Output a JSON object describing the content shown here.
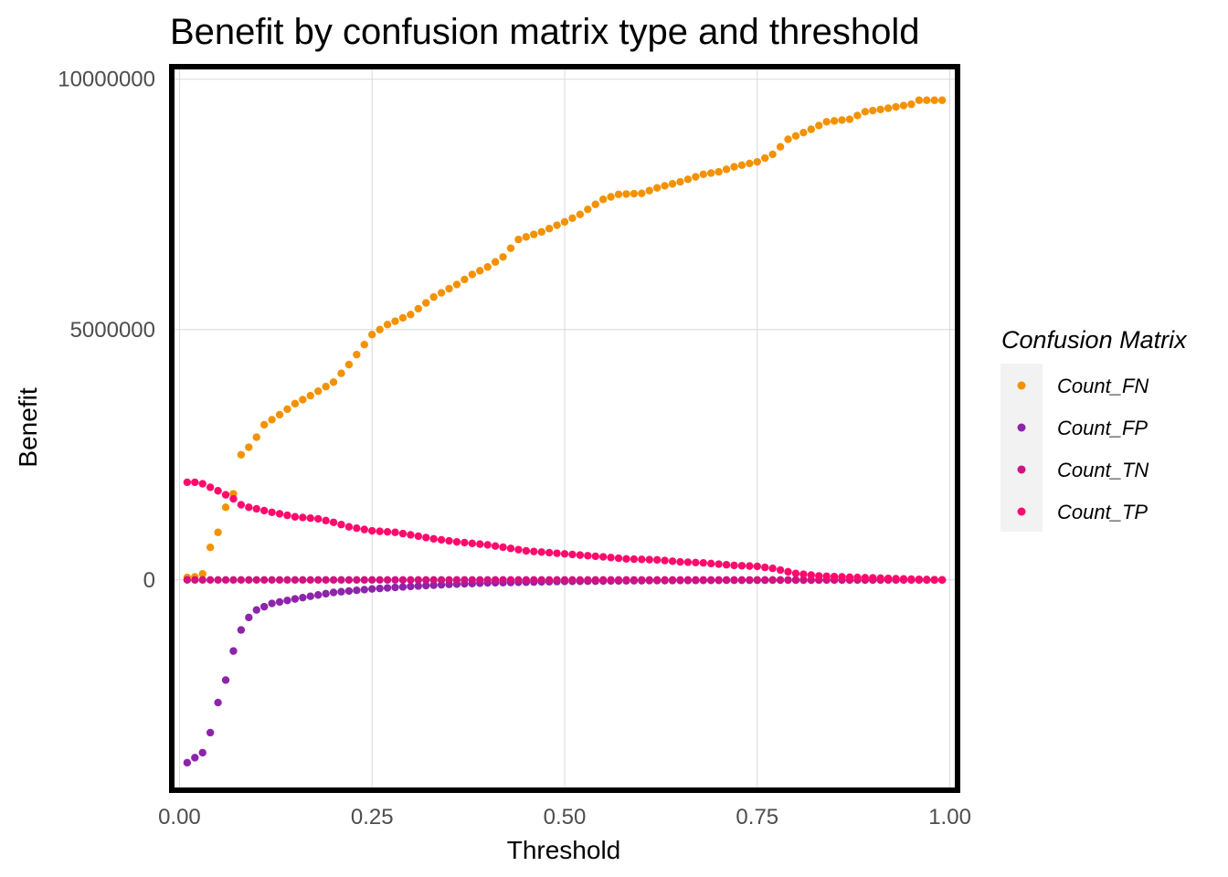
{
  "chart_data": {
    "type": "scatter",
    "title": "Benefit by confusion matrix type and threshold",
    "xlabel": "Threshold",
    "ylabel": "Benefit",
    "xlim": [
      -0.01,
      1.01
    ],
    "ylim": [
      -4200000,
      10250000
    ],
    "x_ticks": [
      0.0,
      0.25,
      0.5,
      0.75,
      1.0
    ],
    "x_tick_labels": [
      "0.00",
      "0.25",
      "0.50",
      "0.75",
      "1.00"
    ],
    "y_ticks": [
      0,
      5000000,
      10000000
    ],
    "y_tick_labels": [
      "0",
      "5000000",
      "10000000"
    ],
    "grid": true,
    "legend": {
      "title": "Confusion Matrix",
      "position": "right"
    },
    "series": [
      {
        "name": "Count_FN",
        "color": "#F39200",
        "anchors": [
          [
            0.01,
            50000
          ],
          [
            0.02,
            60000
          ],
          [
            0.03,
            120000
          ],
          [
            0.04,
            650000
          ],
          [
            0.05,
            950000
          ],
          [
            0.06,
            1450000
          ],
          [
            0.07,
            1720000
          ],
          [
            0.08,
            2500000
          ],
          [
            0.09,
            2650000
          ],
          [
            0.1,
            2850000
          ],
          [
            0.11,
            3100000
          ],
          [
            0.13,
            3300000
          ],
          [
            0.15,
            3520000
          ],
          [
            0.17,
            3680000
          ],
          [
            0.2,
            3950000
          ],
          [
            0.22,
            4300000
          ],
          [
            0.25,
            4900000
          ],
          [
            0.27,
            5100000
          ],
          [
            0.3,
            5300000
          ],
          [
            0.33,
            5650000
          ],
          [
            0.36,
            5900000
          ],
          [
            0.38,
            6100000
          ],
          [
            0.4,
            6250000
          ],
          [
            0.42,
            6450000
          ],
          [
            0.44,
            6800000
          ],
          [
            0.47,
            6950000
          ],
          [
            0.5,
            7150000
          ],
          [
            0.52,
            7300000
          ],
          [
            0.55,
            7600000
          ],
          [
            0.57,
            7700000
          ],
          [
            0.6,
            7720000
          ],
          [
            0.62,
            7830000
          ],
          [
            0.65,
            7950000
          ],
          [
            0.68,
            8100000
          ],
          [
            0.7,
            8150000
          ],
          [
            0.72,
            8250000
          ],
          [
            0.75,
            8350000
          ],
          [
            0.77,
            8500000
          ],
          [
            0.79,
            8800000
          ],
          [
            0.82,
            9000000
          ],
          [
            0.84,
            9150000
          ],
          [
            0.87,
            9200000
          ],
          [
            0.89,
            9350000
          ],
          [
            0.92,
            9420000
          ],
          [
            0.95,
            9500000
          ],
          [
            0.96,
            9580000
          ],
          [
            0.99,
            9580000
          ]
        ]
      },
      {
        "name": "Count_FP",
        "color": "#8E24AA",
        "anchors": [
          [
            0.01,
            -3650000
          ],
          [
            0.02,
            -3550000
          ],
          [
            0.03,
            -3450000
          ],
          [
            0.04,
            -3050000
          ],
          [
            0.05,
            -2450000
          ],
          [
            0.06,
            -2000000
          ],
          [
            0.07,
            -1420000
          ],
          [
            0.08,
            -1000000
          ],
          [
            0.09,
            -750000
          ],
          [
            0.1,
            -600000
          ],
          [
            0.12,
            -470000
          ],
          [
            0.15,
            -380000
          ],
          [
            0.18,
            -300000
          ],
          [
            0.2,
            -250000
          ],
          [
            0.25,
            -180000
          ],
          [
            0.3,
            -130000
          ],
          [
            0.35,
            -90000
          ],
          [
            0.4,
            -60000
          ],
          [
            0.5,
            -30000
          ],
          [
            0.6,
            -15000
          ],
          [
            0.7,
            -8000
          ],
          [
            0.8,
            -4000
          ],
          [
            0.9,
            -1000
          ],
          [
            0.99,
            0
          ]
        ]
      },
      {
        "name": "Count_TN",
        "color": "#D1127F",
        "anchors": [
          [
            0.01,
            0
          ],
          [
            0.99,
            0
          ]
        ]
      },
      {
        "name": "Count_TP",
        "color": "#FF0A6C",
        "anchors": [
          [
            0.01,
            1950000
          ],
          [
            0.02,
            1950000
          ],
          [
            0.03,
            1920000
          ],
          [
            0.04,
            1850000
          ],
          [
            0.05,
            1780000
          ],
          [
            0.06,
            1700000
          ],
          [
            0.07,
            1620000
          ],
          [
            0.08,
            1500000
          ],
          [
            0.09,
            1450000
          ],
          [
            0.1,
            1420000
          ],
          [
            0.12,
            1350000
          ],
          [
            0.15,
            1260000
          ],
          [
            0.18,
            1220000
          ],
          [
            0.2,
            1150000
          ],
          [
            0.22,
            1060000
          ],
          [
            0.25,
            980000
          ],
          [
            0.28,
            950000
          ],
          [
            0.3,
            900000
          ],
          [
            0.33,
            820000
          ],
          [
            0.36,
            760000
          ],
          [
            0.4,
            700000
          ],
          [
            0.43,
            630000
          ],
          [
            0.45,
            580000
          ],
          [
            0.5,
            520000
          ],
          [
            0.55,
            460000
          ],
          [
            0.58,
            420000
          ],
          [
            0.62,
            400000
          ],
          [
            0.65,
            360000
          ],
          [
            0.68,
            340000
          ],
          [
            0.72,
            290000
          ],
          [
            0.75,
            270000
          ],
          [
            0.77,
            230000
          ],
          [
            0.8,
            130000
          ],
          [
            0.83,
            80000
          ],
          [
            0.86,
            60000
          ],
          [
            0.9,
            40000
          ],
          [
            0.94,
            20000
          ],
          [
            0.99,
            0
          ]
        ]
      }
    ]
  }
}
